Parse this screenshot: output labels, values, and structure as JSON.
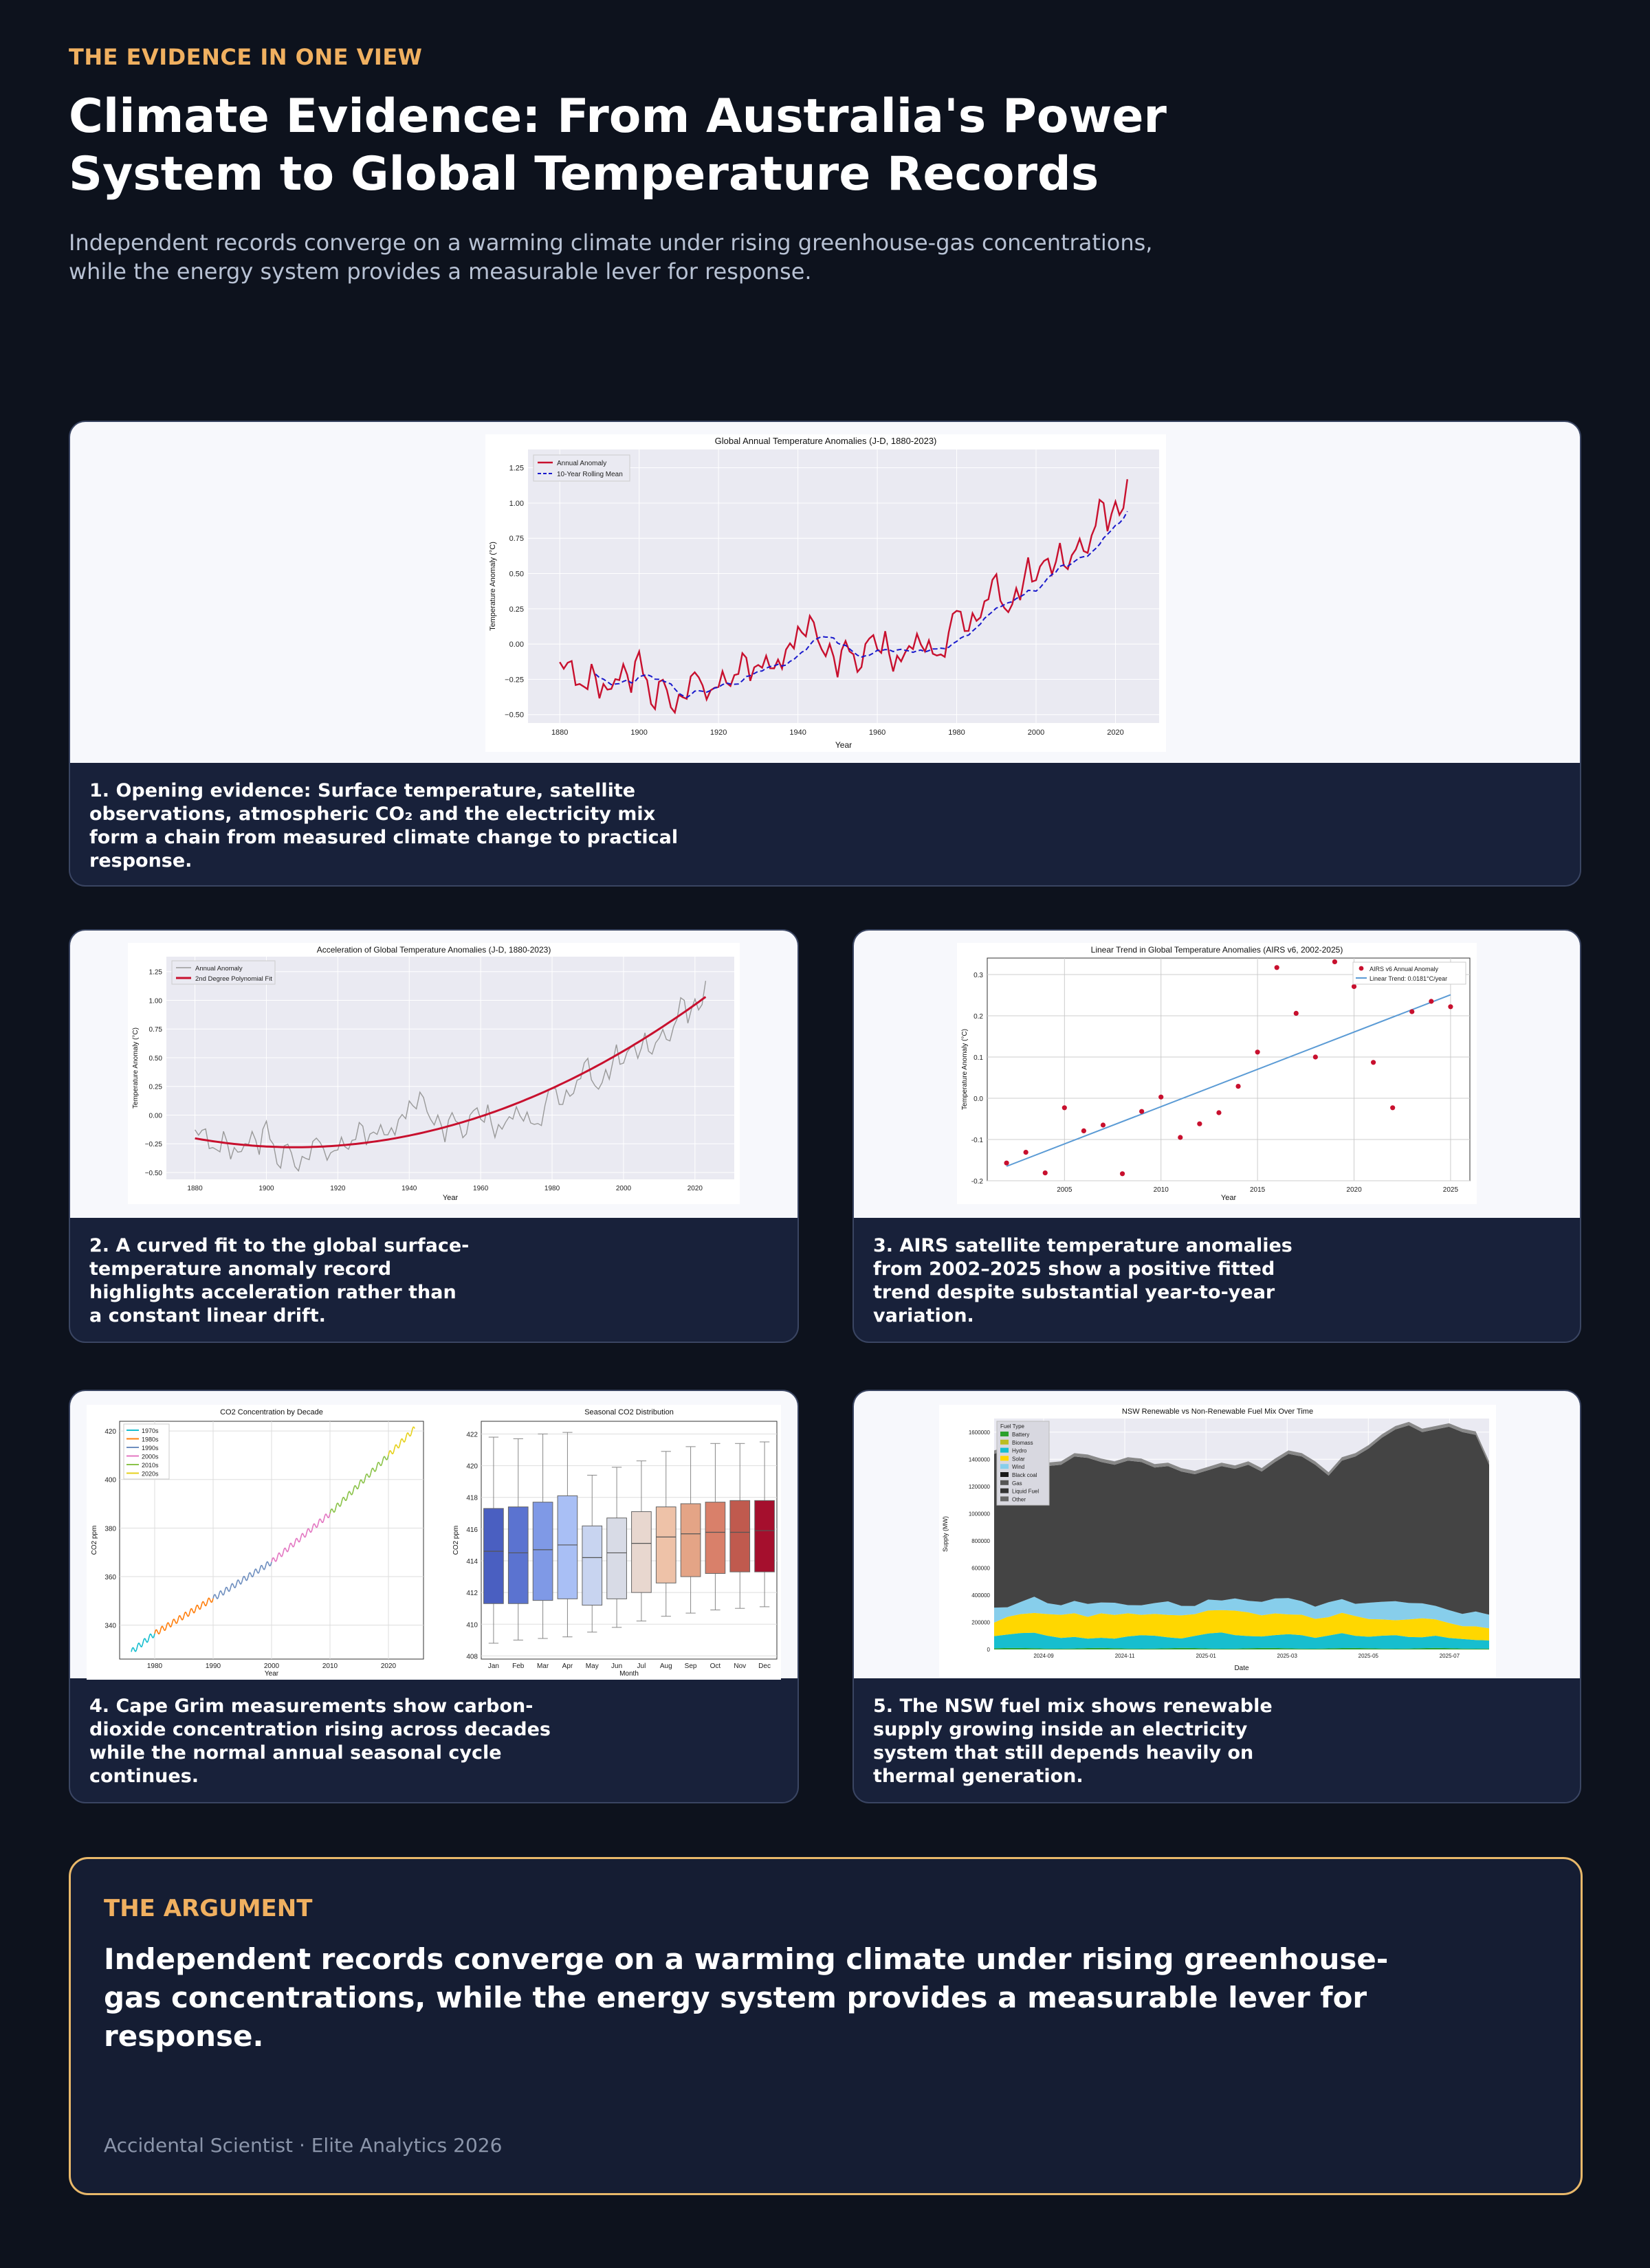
{
  "header": {
    "kicker": "THE EVIDENCE IN ONE VIEW",
    "title": "Climate Evidence: From Australia's Power System to Global Temperature Records",
    "subtitle": "Independent records converge on a warming climate under rising greenhouse-gas concentrations, while the energy system provides a measurable lever for response."
  },
  "cards": [
    {
      "caption": "1. Opening evidence: Surface temperature, satellite observations, atmospheric CO₂ and the electricity mix form a chain from measured climate change to practical response."
    },
    {
      "caption": "2. A curved fit to the global surface-temperature anomaly record highlights acceleration rather than a constant linear drift."
    },
    {
      "caption": "3. AIRS satellite temperature anomalies from 2002–2025 show a positive fitted trend despite substantial year-to-year variation."
    },
    {
      "caption": "4. Cape Grim measurements show carbon-dioxide concentration rising across decades while the normal annual seasonal cycle continues."
    },
    {
      "caption": "5. The NSW fuel mix shows renewable supply growing inside an electricity system that still depends heavily on thermal generation."
    }
  ],
  "argument": {
    "label": "THE ARGUMENT",
    "text": "Independent records converge on a warming climate under rising greenhouse-gas concentrations, while the energy system provides a measurable lever for response.",
    "footer": "Accidental Scientist · Elite Analytics 2026"
  },
  "colors": {
    "background": "#0d121d",
    "card": "#18213a",
    "accent": "#f0b060",
    "anomaly": "#c8102e",
    "rolling": "#1a1acc"
  },
  "chart_data": [
    {
      "type": "line",
      "title": "Global Annual Temperature Anomalies (J-D, 1880-2023)",
      "xlabel": "Year",
      "ylabel": "Temperature Anomaly (°C)",
      "xlim": [
        1872,
        2031
      ],
      "ylim": [
        -0.56,
        1.38
      ],
      "xticks": [
        1880,
        1900,
        1920,
        1940,
        1960,
        1980,
        2000,
        2020
      ],
      "yticks": [
        -0.5,
        -0.25,
        0,
        0.25,
        0.5,
        0.75,
        1.0,
        1.25
      ],
      "ytick_labels": [
        "−0.50",
        "−0.25",
        "0.00",
        "0.25",
        "0.50",
        "0.75",
        "1.00",
        "1.25"
      ],
      "legend": [
        "Annual Anomaly",
        "10-Year Rolling Mean"
      ],
      "legend_position": "top-left",
      "grid": true,
      "series_keyframes": [
        [
          1880,
          -0.17
        ],
        [
          1882,
          -0.09
        ],
        [
          1884,
          -0.28
        ],
        [
          1886,
          -0.31
        ],
        [
          1888,
          -0.18
        ],
        [
          1890,
          -0.36
        ],
        [
          1892,
          -0.27
        ],
        [
          1894,
          -0.32
        ],
        [
          1896,
          -0.15
        ],
        [
          1898,
          -0.28
        ],
        [
          1900,
          -0.08
        ],
        [
          1902,
          -0.28
        ],
        [
          1904,
          -0.46
        ],
        [
          1906,
          -0.22
        ],
        [
          1908,
          -0.44
        ],
        [
          1910,
          -0.43
        ],
        [
          1912,
          -0.35
        ],
        [
          1914,
          -0.15
        ],
        [
          1916,
          -0.36
        ],
        [
          1918,
          -0.33
        ],
        [
          1920,
          -0.27
        ],
        [
          1922,
          -0.27
        ],
        [
          1924,
          -0.24
        ],
        [
          1926,
          -0.1
        ],
        [
          1928,
          -0.2
        ],
        [
          1930,
          -0.14
        ],
        [
          1932,
          -0.16
        ],
        [
          1934,
          -0.13
        ],
        [
          1936,
          -0.14
        ],
        [
          1938,
          -0.03
        ],
        [
          1940,
          0.11
        ],
        [
          1942,
          0.06
        ],
        [
          1944,
          0.2
        ],
        [
          1946,
          -0.07
        ],
        [
          1948,
          -0.05
        ],
        [
          1950,
          -0.16
        ],
        [
          1952,
          0.02
        ],
        [
          1954,
          -0.13
        ],
        [
          1956,
          -0.14
        ],
        [
          1958,
          0.06
        ],
        [
          1960,
          -0.03
        ],
        [
          1962,
          0.05
        ],
        [
          1964,
          -0.2
        ],
        [
          1966,
          -0.05
        ],
        [
          1968,
          -0.06
        ],
        [
          1970,
          0.03
        ],
        [
          1972,
          0.01
        ],
        [
          1974,
          -0.07
        ],
        [
          1976,
          -0.1
        ],
        [
          1978,
          0.07
        ],
        [
          1980,
          0.26
        ],
        [
          1982,
          0.13
        ],
        [
          1984,
          0.15
        ],
        [
          1986,
          0.19
        ],
        [
          1988,
          0.39
        ],
        [
          1990,
          0.45
        ],
        [
          1992,
          0.23
        ],
        [
          1994,
          0.31
        ],
        [
          1996,
          0.33
        ],
        [
          1998,
          0.61
        ],
        [
          2000,
          0.4
        ],
        [
          2002,
          0.63
        ],
        [
          2004,
          0.54
        ],
        [
          2006,
          0.64
        ],
        [
          2008,
          0.54
        ],
        [
          2010,
          0.72
        ],
        [
          2012,
          0.64
        ],
        [
          2014,
          0.75
        ],
        [
          2016,
          1.01
        ],
        [
          2018,
          0.85
        ],
        [
          2020,
          1.01
        ],
        [
          2022,
          0.89
        ],
        [
          2023,
          1.17
        ]
      ]
    },
    {
      "type": "line",
      "title": "Acceleration of Global Temperature Anomalies (J-D, 1880-2023)",
      "xlabel": "Year",
      "ylabel": "Temperature Anomaly (°C)",
      "xlim": [
        1872,
        2031
      ],
      "ylim": [
        -0.56,
        1.38
      ],
      "legend": [
        "Annual Anomaly",
        "2nd Degree Polynomial Fit"
      ],
      "legend_position": "top-left",
      "grid": true,
      "polyfit": {
        "min_year": 1908,
        "min_value": -0.28,
        "end_year": 2023,
        "end_value": 1.03
      }
    },
    {
      "type": "scatter",
      "title": "Linear Trend in Global Temperature Anomalies (AIRS v6, 2002-2025)",
      "xlabel": "Year",
      "ylabel": "Temperature Anomaly (°C)",
      "xlim": [
        2001,
        2026
      ],
      "ylim": [
        -0.2,
        0.34
      ],
      "xticks": [
        2005,
        2010,
        2015,
        2020,
        2025
      ],
      "yticks": [
        -0.2,
        -0.1,
        0.0,
        0.1,
        0.2,
        0.3
      ],
      "legend": [
        "AIRS v6 Annual Anomaly",
        "Linear Trend: 0.0181°C/year"
      ],
      "legend_position": "top-right",
      "grid": true,
      "x": [
        2002,
        2003,
        2004,
        2005,
        2006,
        2007,
        2008,
        2009,
        2010,
        2011,
        2012,
        2013,
        2014,
        2015,
        2016,
        2017,
        2018,
        2019,
        2020,
        2021,
        2022,
        2023,
        2024,
        2025
      ],
      "y": [
        -0.157,
        -0.131,
        -0.181,
        -0.023,
        -0.079,
        -0.065,
        -0.183,
        -0.032,
        0.003,
        -0.095,
        -0.062,
        -0.035,
        0.029,
        0.112,
        0.317,
        0.206,
        0.1,
        0.331,
        0.271,
        0.087,
        -0.023,
        0.21,
        0.235,
        0.222
      ],
      "trend": {
        "slope": 0.0181,
        "start": [
          2002,
          -0.165
        ],
        "end": [
          2025,
          0.251
        ]
      }
    },
    {
      "type": "line",
      "title": "CO2 Concentration by Decade",
      "xlabel": "Year",
      "ylabel": "CO2 ppm",
      "xlim": [
        1974,
        2026
      ],
      "ylim": [
        326,
        424
      ],
      "xticks": [
        1980,
        1990,
        2000,
        2010,
        2020
      ],
      "yticks": [
        340,
        360,
        380,
        400,
        420
      ],
      "legend": [
        "1970s",
        "1980s",
        "1990s",
        "2000s",
        "2010s",
        "2020s"
      ],
      "legend_position": "top-left",
      "series_colors": [
        "#17becf",
        "#ff7f0e",
        "#6f8fbf",
        "#e377c2",
        "#8bc34a",
        "#e6d11c"
      ],
      "keyframes": [
        [
          1976,
          329
        ],
        [
          1980,
          336.5
        ],
        [
          1990,
          351
        ],
        [
          2000,
          366
        ],
        [
          2010,
          386
        ],
        [
          2020,
          410
        ],
        [
          2024.5,
          421
        ]
      ]
    },
    {
      "type": "box",
      "title": "Seasonal CO2 Distribution",
      "xlabel": "Month",
      "ylabel": "CO2 ppm",
      "ylim": [
        407.8,
        422.8
      ],
      "yticks": [
        408,
        410,
        412,
        414,
        416,
        418,
        420,
        422
      ],
      "categories": [
        "Jan",
        "Feb",
        "Mar",
        "Apr",
        "May",
        "Jun",
        "Jul",
        "Aug",
        "Sep",
        "Oct",
        "Nov",
        "Dec"
      ],
      "colors": [
        "#4a5fc1",
        "#5b73d0",
        "#7f99e6",
        "#a9bff5",
        "#c8d4f0",
        "#d8dbe6",
        "#e8d7cf",
        "#eec2a8",
        "#e4a486",
        "#d9806a",
        "#c05a4e",
        "#a50f2d"
      ],
      "boxes": [
        {
          "whislo": 408.8,
          "q1": 411.3,
          "med": 414.6,
          "q3": 417.3,
          "whishi": 421.8
        },
        {
          "whislo": 409.0,
          "q1": 411.3,
          "med": 414.5,
          "q3": 417.4,
          "whishi": 421.7
        },
        {
          "whislo": 409.1,
          "q1": 411.5,
          "med": 414.7,
          "q3": 417.7,
          "whishi": 422.0
        },
        {
          "whislo": 409.2,
          "q1": 411.6,
          "med": 415.0,
          "q3": 418.1,
          "whishi": 422.1
        },
        {
          "whislo": 409.5,
          "q1": 411.2,
          "med": 414.2,
          "q3": 416.2,
          "whishi": 419.4
        },
        {
          "whislo": 409.8,
          "q1": 411.6,
          "med": 414.5,
          "q3": 416.7,
          "whishi": 419.9
        },
        {
          "whislo": 410.2,
          "q1": 412.0,
          "med": 415.1,
          "q3": 417.1,
          "whishi": 420.3
        },
        {
          "whislo": 410.5,
          "q1": 412.6,
          "med": 415.5,
          "q3": 417.4,
          "whishi": 420.9
        },
        {
          "whislo": 410.7,
          "q1": 413.0,
          "med": 415.7,
          "q3": 417.6,
          "whishi": 421.2
        },
        {
          "whislo": 410.9,
          "q1": 413.2,
          "med": 415.8,
          "q3": 417.7,
          "whishi": 421.4
        },
        {
          "whislo": 411.0,
          "q1": 413.3,
          "med": 415.8,
          "q3": 417.8,
          "whishi": 421.4
        },
        {
          "whislo": 411.1,
          "q1": 413.3,
          "med": 415.9,
          "q3": 417.8,
          "whishi": 421.5
        }
      ]
    },
    {
      "type": "area",
      "title": "NSW Renewable vs Non-Renewable Fuel Mix Over Time",
      "xlabel": "Date",
      "ylabel": "Supply (MW)",
      "ylim": [
        0,
        1700000
      ],
      "yticks": [
        0,
        200000,
        400000,
        600000,
        800000,
        1000000,
        1200000,
        1400000,
        1600000
      ],
      "xticks": [
        "2024-09",
        "2024-11",
        "2025-01",
        "2025-03",
        "2025-05",
        "2025-07"
      ],
      "legend_title": "Fuel Type",
      "legend": [
        "Battery",
        "Biomass",
        "Hydro",
        "Solar",
        "Wind",
        "Black coal",
        "Gas",
        "Liquid Fuel",
        "Other"
      ],
      "legend_colors": [
        "#2ca02c",
        "#bcbd22",
        "#17becf",
        "#ffd700",
        "#87ceeb",
        "#1a1a1a",
        "#555555",
        "#333333",
        "#666666"
      ],
      "legend_position": "top-left",
      "stacks": {
        "hydro": [
          90000,
          100000,
          110000,
          115000,
          95000,
          80000,
          85000,
          70000,
          75000,
          70000,
          90000,
          100000,
          95000,
          80000,
          70000,
          90000,
          110000,
          120000,
          100000,
          90000,
          85000,
          95000,
          105000,
          100000,
          80000,
          95000,
          110000,
          90000,
          85000,
          95000,
          100000,
          85000,
          80000,
          90000,
          75000,
          70000,
          65000,
          60000
        ],
        "solar": [
          100000,
          130000,
          140000,
          145000,
          160000,
          170000,
          175000,
          160000,
          180000,
          175000,
          170000,
          150000,
          160000,
          165000,
          170000,
          160000,
          170000,
          165000,
          180000,
          175000,
          155000,
          160000,
          145000,
          150000,
          140000,
          135000,
          150000,
          145000,
          130000,
          120000,
          110000,
          130000,
          140000,
          120000,
          110000,
          95000,
          100000,
          90000
        ],
        "wind": [
          110000,
          70000,
          90000,
          120000,
          80000,
          70000,
          90000,
          95000,
          80000,
          90000,
          60000,
          70000,
          80000,
          100000,
          70000,
          60000,
          80000,
          70000,
          90000,
          85000,
          100000,
          110000,
          120000,
          100000,
          90000,
          110000,
          100000,
          90000,
          120000,
          130000,
          140000,
          120000,
          110000,
          100000,
          95000,
          90000,
          110000,
          100000
        ],
        "total": [
          1440000,
          1470000,
          1420000,
          1390000,
          1350000,
          1360000,
          1420000,
          1410000,
          1380000,
          1360000,
          1390000,
          1380000,
          1340000,
          1350000,
          1310000,
          1290000,
          1320000,
          1350000,
          1330000,
          1360000,
          1310000,
          1380000,
          1440000,
          1420000,
          1360000,
          1280000,
          1390000,
          1420000,
          1480000,
          1560000,
          1620000,
          1650000,
          1600000,
          1620000,
          1640000,
          1600000,
          1580000,
          1360000
        ]
      }
    }
  ]
}
